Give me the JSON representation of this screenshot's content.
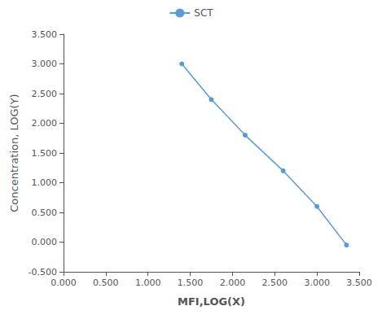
{
  "chart_data": {
    "type": "line",
    "x": [
      1.4,
      1.75,
      2.15,
      2.6,
      3.0,
      3.35
    ],
    "series": [
      {
        "name": "SCT",
        "color": "#5B9BD5",
        "marker": "circle",
        "values": [
          3.0,
          2.4,
          1.8,
          1.2,
          0.6,
          -0.05
        ]
      }
    ],
    "xlabel": "MFI,LOG(X)",
    "ylabel": "Concentration, LOG(Y)",
    "xlim": [
      0.0,
      3.5
    ],
    "ylim": [
      -0.5,
      3.5
    ],
    "xticks": [
      {
        "value": 0.0,
        "label": "0.000"
      },
      {
        "value": 0.5,
        "label": "0.500"
      },
      {
        "value": 1.0,
        "label": "1.000"
      },
      {
        "value": 1.5,
        "label": "1.500"
      },
      {
        "value": 2.0,
        "label": "2.000"
      },
      {
        "value": 2.5,
        "label": "2.500"
      },
      {
        "value": 3.0,
        "label": "3.000"
      },
      {
        "value": 3.5,
        "label": "3.500"
      }
    ],
    "yticks": [
      {
        "value": -0.5,
        "label": "-0.500"
      },
      {
        "value": 0.0,
        "label": "0.000"
      },
      {
        "value": 0.5,
        "label": "0.500"
      },
      {
        "value": 1.0,
        "label": "1.000"
      },
      {
        "value": 1.5,
        "label": "1.500"
      },
      {
        "value": 2.0,
        "label": "2.000"
      },
      {
        "value": 2.5,
        "label": "2.500"
      },
      {
        "value": 3.0,
        "label": "3.000"
      },
      {
        "value": 3.5,
        "label": "3.500"
      }
    ],
    "grid": false,
    "legend": "top"
  }
}
